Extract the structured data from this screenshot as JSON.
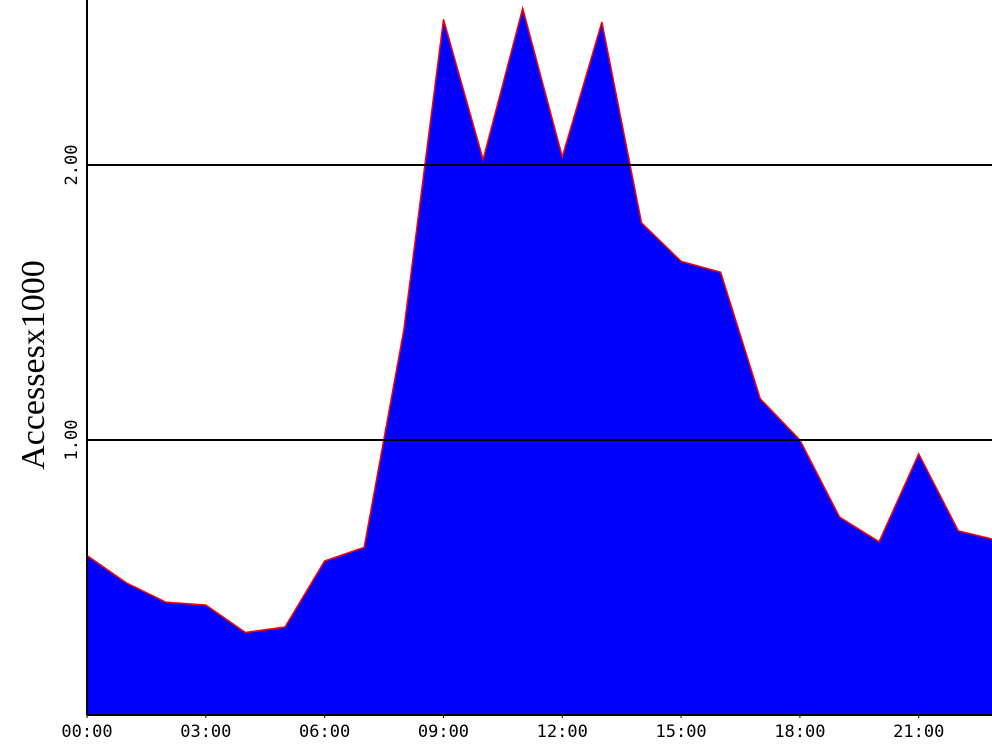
{
  "chart_data": {
    "type": "area",
    "ylabel": "Accessesx1000",
    "x": [
      0,
      1,
      2,
      3,
      4,
      5,
      6,
      7,
      8,
      9,
      10,
      11,
      12,
      13,
      14,
      15,
      16,
      17,
      18,
      19,
      20,
      21,
      22,
      22.85
    ],
    "values": [
      0.58,
      0.48,
      0.41,
      0.4,
      0.3,
      0.32,
      0.56,
      0.61,
      1.4,
      2.53,
      2.02,
      2.57,
      2.03,
      2.52,
      1.79,
      1.65,
      1.61,
      1.15,
      1.0,
      0.72,
      0.63,
      0.95,
      0.67,
      0.64
    ],
    "color": "#0000ff",
    "line_color": "#ff0000",
    "xlim": [
      0,
      22.85
    ],
    "xticks": [
      {
        "value": 0,
        "label": "00:00"
      },
      {
        "value": 3,
        "label": "03:00"
      },
      {
        "value": 6,
        "label": "06:00"
      },
      {
        "value": 9,
        "label": "09:00"
      },
      {
        "value": 12,
        "label": "12:00"
      },
      {
        "value": 15,
        "label": "15:00"
      },
      {
        "value": 18,
        "label": "18:00"
      },
      {
        "value": 21,
        "label": "21:00"
      }
    ],
    "ylim": [
      0,
      2.6
    ],
    "yticks": [
      {
        "value": 1,
        "label": "1.00"
      },
      {
        "value": 2,
        "label": "2.00"
      }
    ],
    "grid": true
  }
}
